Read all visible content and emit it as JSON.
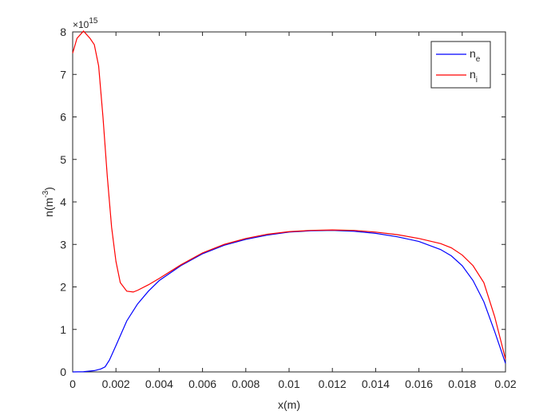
{
  "chart_data": {
    "type": "line",
    "x_label": "x(m)",
    "y_label": {
      "base": "n(m",
      "superscript": "-3",
      "end": ")"
    },
    "y_multiplier": {
      "base": "×10",
      "exponent": "15"
    },
    "xlim": [
      0,
      0.02
    ],
    "xticks": [
      0,
      0.002,
      0.004,
      0.006,
      0.008,
      0.01,
      0.012,
      0.014,
      0.016,
      0.018,
      0.02
    ],
    "ylim": [
      0,
      8
    ],
    "yticks": [
      0,
      1,
      2,
      3,
      4,
      5,
      6,
      7,
      8
    ],
    "legend": "upper right",
    "series": [
      {
        "name": "n",
        "subscript": "e",
        "color": "#0000ff",
        "x": [
          0,
          0.0005,
          0.001,
          0.0013,
          0.0015,
          0.0017,
          0.002,
          0.0025,
          0.003,
          0.0035,
          0.004,
          0.005,
          0.006,
          0.007,
          0.008,
          0.009,
          0.01,
          0.011,
          0.012,
          0.013,
          0.014,
          0.015,
          0.016,
          0.017,
          0.0175,
          0.018,
          0.0185,
          0.019,
          0.0195,
          0.02
        ],
        "values": [
          0,
          0.005,
          0.03,
          0.07,
          0.12,
          0.28,
          0.62,
          1.2,
          1.6,
          1.9,
          2.15,
          2.5,
          2.78,
          2.98,
          3.12,
          3.22,
          3.29,
          3.32,
          3.33,
          3.31,
          3.26,
          3.18,
          3.07,
          2.88,
          2.73,
          2.5,
          2.15,
          1.65,
          0.95,
          0.2
        ]
      },
      {
        "name": "n",
        "subscript": "i",
        "color": "#ff0000",
        "x": [
          0,
          0.0002,
          0.0005,
          0.0008,
          0.001,
          0.0012,
          0.0014,
          0.0016,
          0.0018,
          0.002,
          0.0022,
          0.0025,
          0.0028,
          0.003,
          0.0035,
          0.004,
          0.005,
          0.006,
          0.007,
          0.008,
          0.009,
          0.01,
          0.011,
          0.012,
          0.013,
          0.014,
          0.015,
          0.016,
          0.017,
          0.0175,
          0.018,
          0.0185,
          0.019,
          0.0195,
          0.02
        ],
        "values": [
          7.5,
          7.85,
          8.02,
          7.85,
          7.7,
          7.2,
          6.0,
          4.6,
          3.4,
          2.6,
          2.1,
          1.9,
          1.88,
          1.92,
          2.05,
          2.2,
          2.52,
          2.8,
          3.0,
          3.14,
          3.24,
          3.3,
          3.33,
          3.34,
          3.33,
          3.29,
          3.23,
          3.14,
          3.02,
          2.92,
          2.75,
          2.5,
          2.1,
          1.3,
          0.3
        ]
      }
    ]
  }
}
